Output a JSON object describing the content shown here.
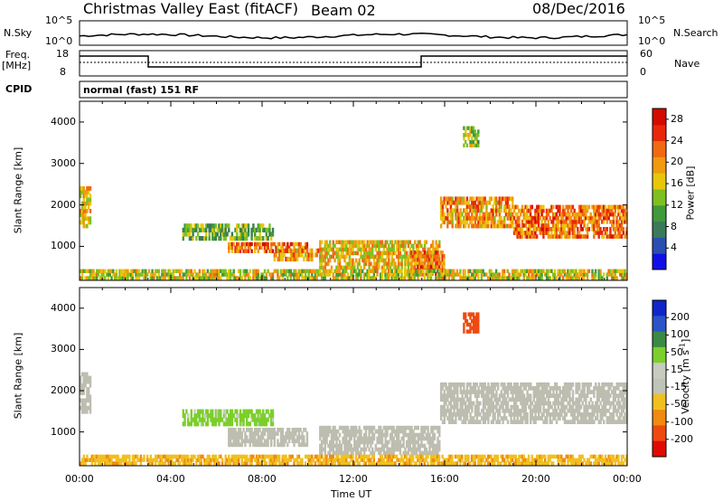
{
  "header": {
    "title": "Christmas Valley East (fitACF)",
    "beam": "Beam 02",
    "date": "08/Dec/2016"
  },
  "meta_panels": {
    "nsky_label": "N.Sky",
    "nsky_ticks": [
      "10^5",
      "10^0"
    ],
    "nsearch_label": "N.Search",
    "nsearch_ticks": [
      "10^5",
      "10^0"
    ],
    "freq_label": "Freq.",
    "freq_unit": "[MHz]",
    "freq_ticks": [
      "18",
      "8"
    ],
    "nave_label": "Nave",
    "nave_ticks": [
      "60",
      "0"
    ],
    "cpid_label": "CPID",
    "cpid_value": "normal (fast) 151 RF"
  },
  "colors": {
    "power": [
      "#1010e6",
      "#2a4fb0",
      "#3a7a5a",
      "#3f9a3a",
      "#7fc021",
      "#e8c60c",
      "#f09a10",
      "#f06a10",
      "#e8280a",
      "#d50a00"
    ],
    "velocity": [
      "#1026c8",
      "#2a54c8",
      "#3b8a44",
      "#7ccf2b",
      "#c8cbc0",
      "#c0c4b8",
      "#f0c020",
      "#f08a10",
      "#ee4a10",
      "#e00a00"
    ],
    "ground_scatter": "#bdbdb0"
  },
  "chart_data": [
    {
      "type": "heatmap",
      "name": "power",
      "xlabel": "",
      "ylabel": "Slant Range [km]",
      "xlim": [
        "00:00",
        "24:00"
      ],
      "ylim": [
        180,
        4500
      ],
      "yticks": [
        "1000",
        "2000",
        "3000",
        "4000"
      ],
      "colorbar": {
        "label": "Power [dB]",
        "ticks": [
          "28",
          "24",
          "20",
          "16",
          "12",
          "8",
          "4"
        ],
        "range": [
          0,
          30
        ]
      },
      "scatter_regions": [
        {
          "t": [
            0.0,
            0.5
          ],
          "range": [
            1450,
            2450
          ],
          "value": 18
        },
        {
          "t": [
            4.5,
            8.5
          ],
          "range": [
            1150,
            1550
          ],
          "value": 12
        },
        {
          "t": [
            6.5,
            10.0
          ],
          "range": [
            850,
            1100
          ],
          "value": 22
        },
        {
          "t": [
            8.5,
            10.5
          ],
          "range": [
            650,
            950
          ],
          "value": 20
        },
        {
          "t": [
            10.5,
            15.8
          ],
          "range": [
            450,
            1150
          ],
          "value": 18
        },
        {
          "t": [
            14.5,
            16.0
          ],
          "range": [
            300,
            900
          ],
          "value": 22
        },
        {
          "t": [
            15.8,
            19.0
          ],
          "range": [
            1450,
            2200
          ],
          "value": 20
        },
        {
          "t": [
            19.0,
            24.0
          ],
          "range": [
            1200,
            2000
          ],
          "value": 22
        },
        {
          "t": [
            16.8,
            17.5
          ],
          "range": [
            3400,
            3900
          ],
          "value": 14
        },
        {
          "t": [
            0.0,
            24.0
          ],
          "range": [
            200,
            450
          ],
          "value": 16
        }
      ]
    },
    {
      "type": "heatmap",
      "name": "velocity",
      "xlabel": "Time UT",
      "ylabel": "Slant Range [km]",
      "xlim": [
        "00:00",
        "24:00"
      ],
      "xticks": [
        "00:00",
        "04:00",
        "08:00",
        "12:00",
        "16:00",
        "20:00",
        "00:00"
      ],
      "ylim": [
        180,
        4500
      ],
      "yticks": [
        "1000",
        "2000",
        "3000",
        "4000"
      ],
      "colorbar": {
        "label": "Velocity [m s",
        "label_sup": "-1",
        "label_end": "]",
        "ticks": [
          "200",
          "100",
          "50",
          "15",
          "-15",
          "-50",
          "-100",
          "-200"
        ]
      },
      "scatter_regions": [
        {
          "t": [
            0.0,
            0.5
          ],
          "range": [
            1450,
            2450
          ],
          "value": 0
        },
        {
          "t": [
            4.5,
            8.5
          ],
          "range": [
            1150,
            1550
          ],
          "value": 30
        },
        {
          "t": [
            6.5,
            10.0
          ],
          "range": [
            650,
            1100
          ],
          "value": 0
        },
        {
          "t": [
            10.5,
            15.8
          ],
          "range": [
            450,
            1150
          ],
          "value": 0
        },
        {
          "t": [
            15.8,
            24.0
          ],
          "range": [
            1200,
            2200
          ],
          "value": 0
        },
        {
          "t": [
            16.8,
            17.5
          ],
          "range": [
            3400,
            3900
          ],
          "value": -150
        },
        {
          "t": [
            0.0,
            24.0
          ],
          "range": [
            200,
            450
          ],
          "value": -40
        }
      ]
    }
  ]
}
